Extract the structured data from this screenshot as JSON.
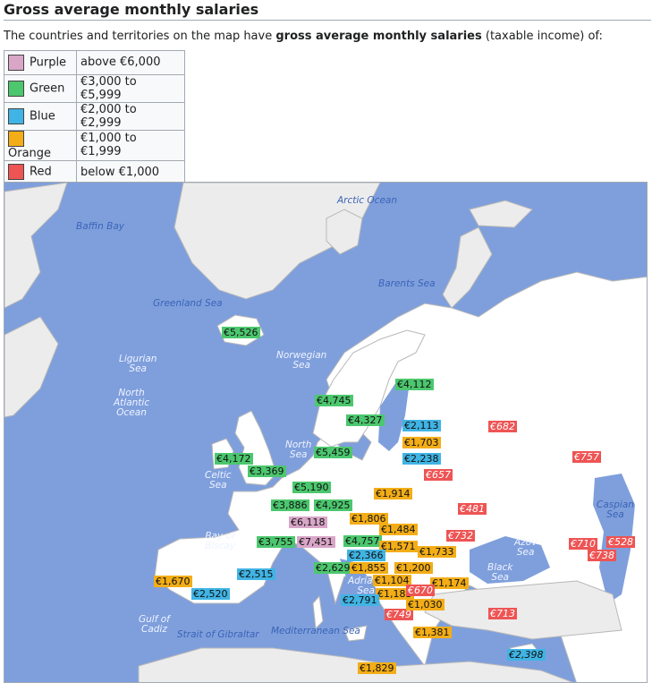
{
  "header": {
    "title": "Gross average monthly salaries",
    "intro_pre": "The countries and territories on the map have ",
    "intro_bold": "gross average monthly salaries",
    "intro_post": " (taxable income) of:"
  },
  "legend": [
    {
      "label": "Purple",
      "range": "above €6,000",
      "color": "#d9a6c8"
    },
    {
      "label": "Green",
      "range": "€3,000 to €5,999",
      "color": "#4cc76e"
    },
    {
      "label": "Blue",
      "range": "€2,000 to €2,999",
      "color": "#40b4e4"
    },
    {
      "label": "Orange",
      "range": "€1,000 to €1,999",
      "color": "#f3ad17"
    },
    {
      "label": "Red",
      "range": "below €1,000",
      "color": "#ee5454"
    }
  ],
  "colors": {
    "sea": "#7f9fdc",
    "land_europe": "#ffffff",
    "land_other": "#ececec",
    "border": "#b8b8b8"
  },
  "seas": {
    "arctic": "Arctic Ocean",
    "baffin": "Baffin Bay",
    "barents": "Barents Sea",
    "greenland": "Greenland Sea",
    "ligurian": "Ligurian\nSea",
    "norwegian": "Norwegian\nSea",
    "north_atlantic": "North\nAtlantic\nOcean",
    "north_sea": "North\nSea",
    "celtic": "Celtic\nSea",
    "caspian": "Caspian\nSea",
    "biscay": "Bay of\nBiscay",
    "azov": "Azov\nSea",
    "black": "Black\nSea",
    "adriatic": "Adriatic\nSea",
    "cadiz": "Gulf of\nCadiz",
    "gibraltar": "Strait of Gibraltar",
    "mediterranean": "Mediterranean Sea"
  },
  "salaries": {
    "iceland": "€5,526",
    "finland": "€4,112",
    "norway": "€4,745",
    "sweden": "€4,327",
    "estonia": "€2,113",
    "latvia": "€1,703",
    "lithuania": "€2,238",
    "russia": "€682",
    "denmark": "€5,459",
    "ireland": "€4,172",
    "uk": "€3,369",
    "netherlands": "€5,190",
    "belarus": "€657",
    "kazakhstan": "€757",
    "poland": "€1,914",
    "belgium": "€3,886",
    "germany": "€4,925",
    "ukraine": "€481",
    "luxembourg": "€6,118",
    "czechia": "€1,806",
    "slovakia": "€1,484",
    "moldova": "€732",
    "france": "€3,755",
    "switzerland": "€7,451",
    "austria": "€4,757",
    "hungary": "€1,571",
    "romania": "€1,733",
    "georgia": "€710",
    "azerbaijan": "€528",
    "armenia": "€738",
    "slovenia": "€2,366",
    "italy": "€2,629",
    "croatia": "€1,855",
    "serbia": "€1,200",
    "andorra": "€2,515",
    "portugal": "€1,670",
    "spain": "€2,520",
    "bosnia": "€1,104",
    "bulgaria": "€1,174",
    "montenegro": "€1,183",
    "kosovo": "€670",
    "malta_sm": "€2,791",
    "albania": "€749",
    "north_macedonia": "€1,030",
    "turkey": "€713",
    "greece": "€1,381",
    "cyprus": "€2,398",
    "malta": "€1,829"
  }
}
